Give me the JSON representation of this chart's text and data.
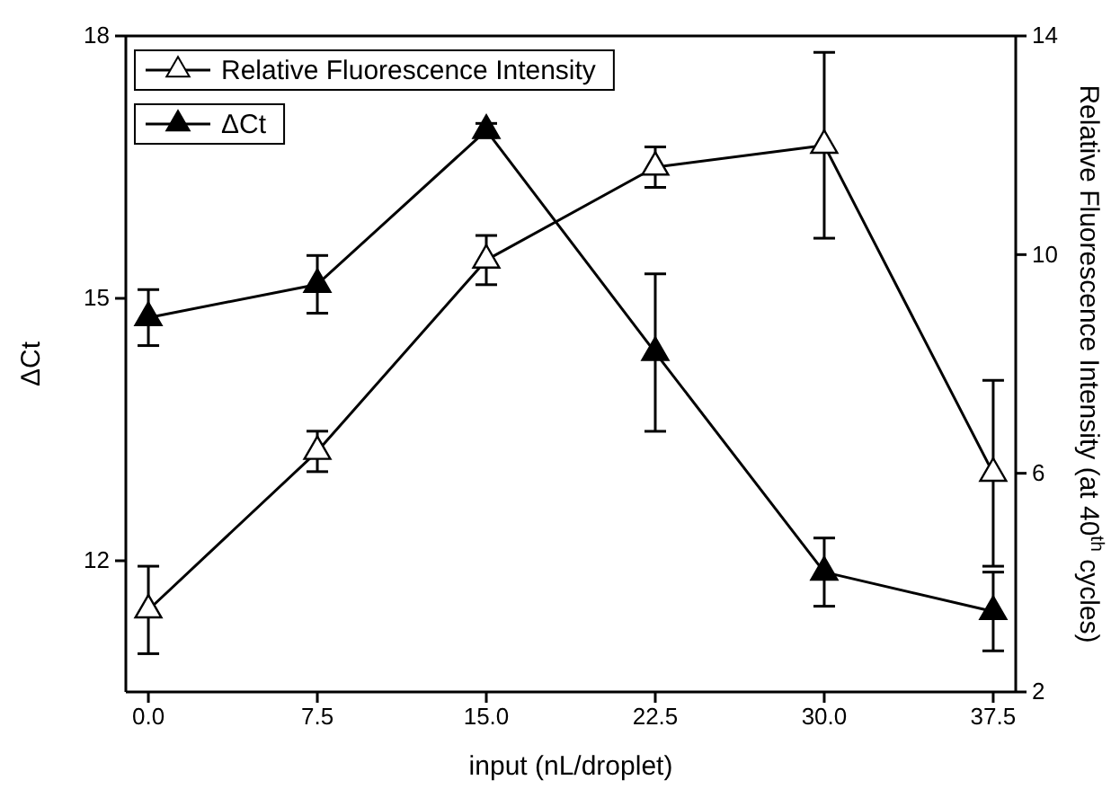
{
  "chart_data": {
    "type": "line",
    "xlabel": "input (nL/droplet)",
    "ylabel": "ΔCt",
    "y2label": "Relative Fluorescence Intensity (at 40$^{th}$ cycles)",
    "x": [
      0,
      7.5,
      15,
      22.5,
      30,
      37.5
    ],
    "xlim": [
      -1,
      38.5
    ],
    "xticks": [
      {
        "value": 0,
        "label": "0.0"
      },
      {
        "value": 7.5,
        "label": "7.5"
      },
      {
        "value": 15,
        "label": "15.0"
      },
      {
        "value": 22.5,
        "label": "22.5"
      },
      {
        "value": 30,
        "label": "30.0"
      },
      {
        "value": 37.5,
        "label": "37.5"
      }
    ],
    "ylim": [
      10.5,
      18
    ],
    "yticks": [
      12,
      15,
      18
    ],
    "y2lim": [
      2,
      14
    ],
    "y2ticks": [
      2,
      6,
      10,
      14
    ],
    "series": [
      {
        "name": "Relative Fluorescence Intensity",
        "color": "#000000",
        "axis": "y2",
        "values": [
          3.5,
          6.4,
          9.9,
          11.6,
          12.0,
          6.0
        ],
        "errors": [
          0.8,
          0.37,
          0.45,
          0.37,
          1.7,
          1.7
        ]
      },
      {
        "name": "ΔCt",
        "color": "#000000",
        "values": [
          14.78,
          15.16,
          16.92,
          14.38,
          11.87,
          11.42
        ],
        "errors": [
          0.32,
          0.33,
          0.08,
          0.9,
          0.39,
          0.45
        ]
      }
    ],
    "marker": "triangle",
    "line_style": "solid",
    "legend": "top left",
    "grid": false
  }
}
